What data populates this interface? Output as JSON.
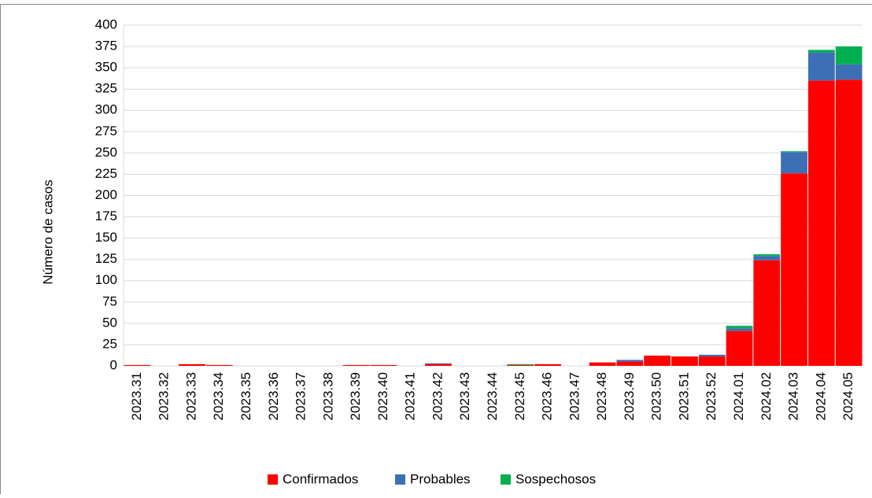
{
  "chart_data": {
    "type": "bar",
    "stacked": true,
    "y_label": "Número de casos",
    "categories": [
      "2023.31",
      "2023.32",
      "2023.33",
      "2023.34",
      "2023.35",
      "2023.36",
      "2023.37",
      "2023.38",
      "2023.39",
      "2023.40",
      "2023.41",
      "2023.42",
      "2023.43",
      "2023.44",
      "2023.45",
      "2023.46",
      "2023.47",
      "2023.48",
      "2023.49",
      "2023.50",
      "2023.51",
      "2023.52",
      "2024.01",
      "2024.02",
      "2024.03",
      "2024.04",
      "2024.05"
    ],
    "series": [
      {
        "name": "Confirmados",
        "color": "#ff0000",
        "values": [
          1,
          0,
          2,
          1,
          0,
          0,
          0,
          0,
          1,
          1,
          0,
          2,
          0,
          0,
          1,
          2,
          0,
          4,
          5,
          12,
          11,
          11,
          41,
          124,
          226,
          335,
          336
        ]
      },
      {
        "name": "Probables",
        "color": "#3d6fb6",
        "values": [
          0,
          0,
          0,
          0,
          0,
          0,
          0,
          0,
          0,
          0,
          0,
          1,
          0,
          0,
          0,
          0,
          0,
          0,
          2,
          0,
          0,
          2,
          3,
          5,
          25,
          33,
          18
        ]
      },
      {
        "name": "Sospechosos",
        "color": "#00b050",
        "values": [
          0,
          0,
          0,
          0,
          0,
          0,
          0,
          0,
          0,
          0,
          0,
          0,
          0,
          0,
          1,
          0,
          0,
          0,
          0,
          0,
          0,
          0,
          3,
          2,
          1,
          3,
          21
        ]
      }
    ],
    "ylim": [
      0,
      400
    ],
    "yticks": [
      0,
      25,
      50,
      75,
      100,
      125,
      150,
      175,
      200,
      225,
      250,
      275,
      300,
      325,
      350,
      375,
      400
    ],
    "grid": true,
    "legend": "bottom"
  }
}
